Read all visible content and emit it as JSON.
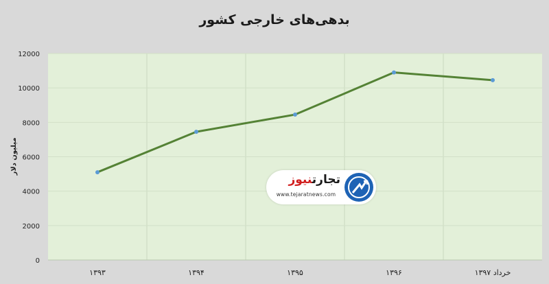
{
  "chart_data": {
    "type": "line",
    "title": "بدهی‌های خارجی کشور",
    "xlabel": "",
    "ylabel": "میلیون دلار",
    "categories": [
      "۱۳۹۳",
      "۱۳۹۴",
      "۱۳۹۵",
      "۱۳۹۶",
      "خرداد ۱۳۹۷"
    ],
    "series": [
      {
        "values": [
          5100,
          7450,
          8450,
          10900,
          10450
        ]
      }
    ],
    "yticks": [
      "0",
      "2000",
      "4000",
      "6000",
      "8000",
      "10000",
      "12000"
    ],
    "ylim": [
      0,
      12000
    ],
    "grid": true,
    "line_color": "#548235",
    "marker_color": "#5b9bd5",
    "plot_background": "#e3f0d9"
  },
  "watermark": {
    "name_black": "تجارت",
    "name_red": "نیوز",
    "url": "www.tejaratnews.com"
  }
}
